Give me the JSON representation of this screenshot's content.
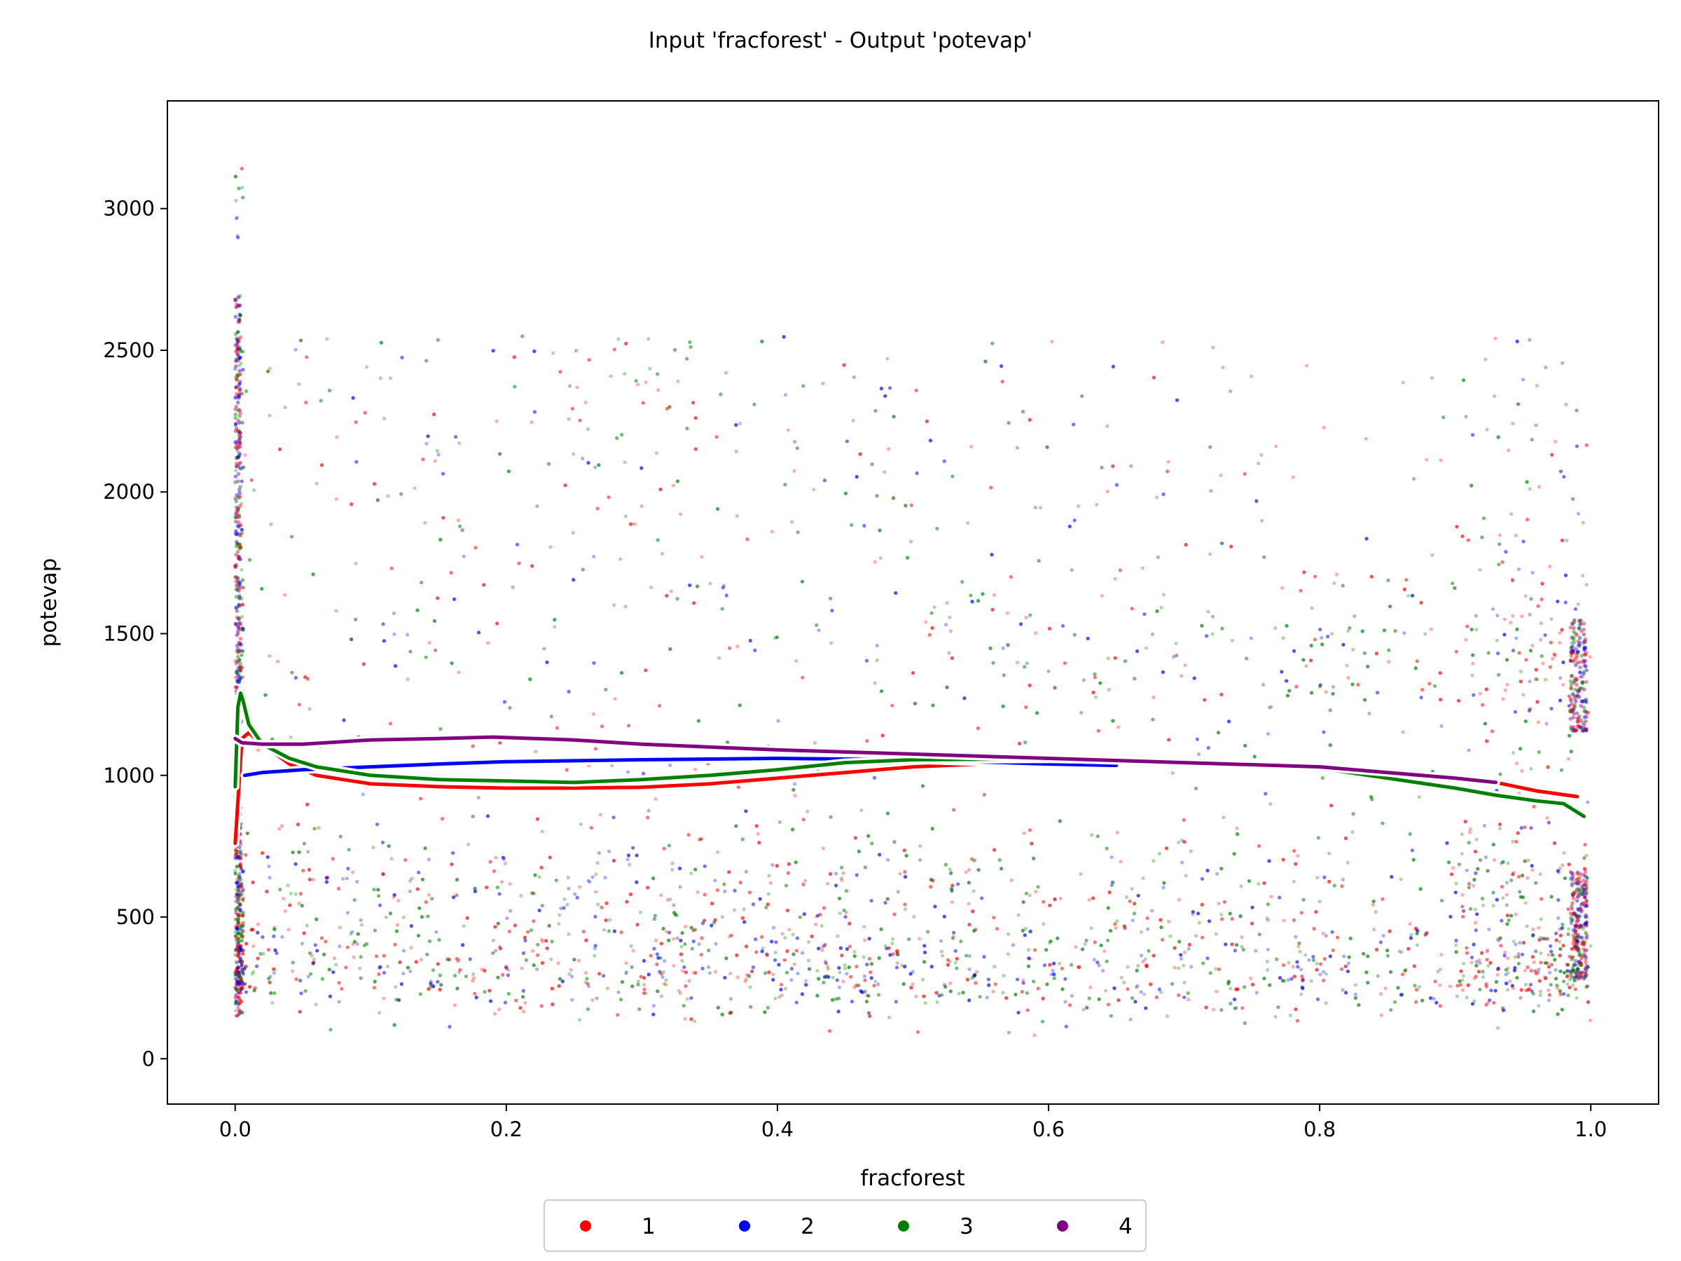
{
  "chart_data": {
    "type": "scatter",
    "title": "Input 'fracforest' - Output 'potevap'",
    "xlabel": "fracforest",
    "ylabel": "potevap",
    "xlim": [
      -0.05,
      1.05
    ],
    "ylim": [
      -160,
      3380
    ],
    "xticks": [
      0.0,
      0.2,
      0.4,
      0.6,
      0.8,
      1.0
    ],
    "xtick_labels": [
      "0.0",
      "0.2",
      "0.4",
      "0.6",
      "0.8",
      "1.0"
    ],
    "yticks": [
      0,
      500,
      1000,
      1500,
      2000,
      2500,
      3000
    ],
    "ytick_labels": [
      "0",
      "500",
      "1000",
      "1500",
      "2000",
      "2500",
      "3000"
    ],
    "grid": false,
    "legend_position": "bottom-center",
    "series": [
      {
        "name": "1",
        "color": "#ff0000",
        "trend": {
          "x": [
            0.0,
            0.005,
            0.01,
            0.02,
            0.04,
            0.06,
            0.1,
            0.15,
            0.2,
            0.25,
            0.3,
            0.35,
            0.4,
            0.45,
            0.5,
            0.55,
            0.6,
            0.65,
            0.7,
            0.75,
            0.8,
            0.85,
            0.9,
            0.93,
            0.96,
            0.99
          ],
          "y": [
            760,
            1130,
            1150,
            1110,
            1040,
            1000,
            970,
            960,
            955,
            955,
            958,
            970,
            990,
            1010,
            1030,
            1040,
            1045,
            1048,
            1048,
            1045,
            1030,
            1000,
            985,
            975,
            945,
            925
          ]
        }
      },
      {
        "name": "2",
        "color": "#0000ff",
        "trend": {
          "x": [
            0.007,
            0.02,
            0.05,
            0.1,
            0.15,
            0.2,
            0.3,
            0.4,
            0.5,
            0.6,
            0.65
          ],
          "y": [
            1000,
            1010,
            1020,
            1030,
            1040,
            1048,
            1055,
            1060,
            1055,
            1040,
            1035
          ]
        }
      },
      {
        "name": "3",
        "color": "#008000",
        "trend": {
          "x": [
            0.0,
            0.002,
            0.004,
            0.006,
            0.01,
            0.02,
            0.04,
            0.06,
            0.1,
            0.15,
            0.2,
            0.25,
            0.3,
            0.35,
            0.4,
            0.45,
            0.5,
            0.6,
            0.7,
            0.8,
            0.85,
            0.9,
            0.93,
            0.96,
            0.98,
            0.995
          ],
          "y": [
            960,
            1240,
            1290,
            1260,
            1180,
            1110,
            1060,
            1030,
            1000,
            985,
            980,
            975,
            985,
            1000,
            1020,
            1045,
            1055,
            1058,
            1050,
            1025,
            990,
            955,
            930,
            910,
            900,
            855
          ]
        }
      },
      {
        "name": "4",
        "color": "#800080",
        "trend": {
          "x": [
            0.0,
            0.005,
            0.02,
            0.05,
            0.1,
            0.15,
            0.19,
            0.25,
            0.3,
            0.4,
            0.5,
            0.6,
            0.7,
            0.8,
            0.85,
            0.9,
            0.93
          ],
          "y": [
            1130,
            1115,
            1110,
            1110,
            1125,
            1130,
            1135,
            1125,
            1110,
            1090,
            1075,
            1060,
            1045,
            1030,
            1010,
            990,
            975
          ]
        }
      }
    ],
    "point_cloud": {
      "x_range": [
        0.0,
        1.0
      ],
      "y_range": [
        0,
        3220
      ],
      "bands": [
        {
          "y_center": 300,
          "spread": 80
        },
        {
          "y_center": 560,
          "spread": 140
        },
        {
          "y_center": 1400,
          "spread": 160
        }
      ]
    }
  }
}
